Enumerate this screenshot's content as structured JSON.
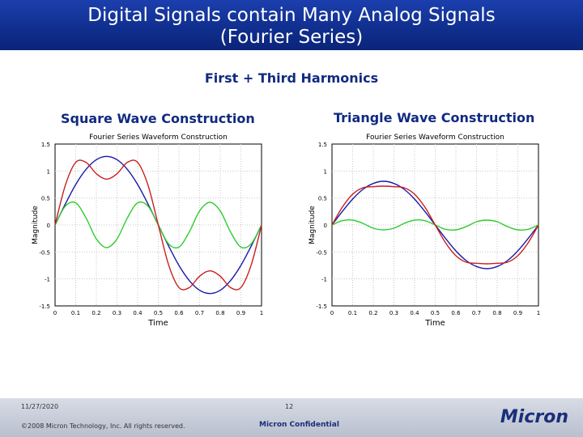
{
  "slide": {
    "title_line1": "Digital Signals contain Many Analog Signals",
    "title_line2": "(Fourier Series)",
    "subtitle": "First + Third Harmonics",
    "footer_date": "11/27/2020",
    "footer_page": "12",
    "footer_copyright": "©2008 Micron Technology, Inc. All rights reserved.",
    "footer_confidential": "Micron Confidential",
    "brand": "Micron"
  },
  "colors": {
    "header": "#1530a0",
    "accent": "#102a80",
    "blue": "#1a1aa8",
    "red": "#c81e1e",
    "green": "#2ecc2e"
  },
  "chart_data": [
    {
      "type": "line",
      "panel_title": "Square Wave Construction",
      "title": "Fourier Series Waveform Construction",
      "xlabel": "Time",
      "ylabel": "Magnitude",
      "xlim": [
        0,
        1
      ],
      "ylim": [
        -1.5,
        1.5
      ],
      "xticks": [
        "0",
        "0.1",
        "0.2",
        "0.3",
        "0.4",
        "0.5",
        "0.6",
        "0.7",
        "0.8",
        "0.9",
        "1"
      ],
      "yticks": [
        "1.5",
        "1",
        "0.5",
        "0",
        "-0.5",
        "-1",
        "-1.5"
      ],
      "grid": true,
      "x": [
        0,
        0.05,
        0.1,
        0.15,
        0.2,
        0.25,
        0.3,
        0.35,
        0.4,
        0.45,
        0.5,
        0.55,
        0.6,
        0.65,
        0.7,
        0.75,
        0.8,
        0.85,
        0.9,
        0.95,
        1
      ],
      "series": [
        {
          "color": "#1a1aa8",
          "values": [
            0,
            0.39,
            0.75,
            1.03,
            1.21,
            1.27,
            1.21,
            1.03,
            0.75,
            0.39,
            0,
            -0.39,
            -0.75,
            -1.03,
            -1.21,
            -1.27,
            -1.21,
            -1.03,
            -0.75,
            -0.39,
            0
          ]
        },
        {
          "color": "#2ecc2e",
          "values": [
            0,
            0.35,
            0.41,
            0.13,
            -0.26,
            -0.42,
            -0.26,
            0.13,
            0.41,
            0.35,
            0,
            -0.35,
            -0.41,
            -0.13,
            0.26,
            0.42,
            0.26,
            -0.13,
            -0.41,
            -0.35,
            0
          ]
        },
        {
          "color": "#c81e1e",
          "values": [
            0,
            0.74,
            1.16,
            1.16,
            0.95,
            0.85,
            0.95,
            1.16,
            1.16,
            0.74,
            0,
            -0.74,
            -1.16,
            -1.16,
            -0.95,
            -0.85,
            -0.95,
            -1.16,
            -1.16,
            -0.74,
            0
          ]
        }
      ]
    },
    {
      "type": "line",
      "panel_title": "Triangle Wave Construction",
      "title": "Fourier Series Waveform Construction",
      "xlabel": "Time",
      "ylabel": "Magnitude",
      "xlim": [
        0,
        1
      ],
      "ylim": [
        -1.5,
        1.5
      ],
      "xticks": [
        "0",
        "0.1",
        "0.2",
        "0.3",
        "0.4",
        "0.5",
        "0.6",
        "0.7",
        "0.8",
        "0.9",
        "1"
      ],
      "yticks": [
        "1.5",
        "1",
        "0.5",
        "0",
        "-0.5",
        "-1",
        "-1.5"
      ],
      "grid": true,
      "x": [
        0,
        0.05,
        0.1,
        0.15,
        0.2,
        0.25,
        0.3,
        0.35,
        0.4,
        0.45,
        0.5,
        0.55,
        0.6,
        0.65,
        0.7,
        0.75,
        0.8,
        0.85,
        0.9,
        0.95,
        1
      ],
      "series": [
        {
          "color": "#1a1aa8",
          "values": [
            0,
            0.25,
            0.48,
            0.66,
            0.77,
            0.81,
            0.77,
            0.66,
            0.48,
            0.25,
            0,
            -0.25,
            -0.48,
            -0.66,
            -0.77,
            -0.81,
            -0.77,
            -0.66,
            -0.48,
            -0.25,
            0
          ]
        },
        {
          "color": "#2ecc2e",
          "values": [
            0,
            0.08,
            0.09,
            0.03,
            -0.06,
            -0.09,
            -0.06,
            0.03,
            0.09,
            0.08,
            0,
            -0.08,
            -0.09,
            -0.03,
            0.06,
            0.09,
            0.06,
            -0.03,
            -0.09,
            -0.08,
            0
          ]
        },
        {
          "color": "#c81e1e",
          "values": [
            0,
            0.33,
            0.57,
            0.69,
            0.71,
            0.72,
            0.71,
            0.69,
            0.57,
            0.33,
            0,
            -0.33,
            -0.57,
            -0.69,
            -0.71,
            -0.72,
            -0.71,
            -0.69,
            -0.57,
            -0.33,
            0
          ]
        }
      ]
    }
  ]
}
